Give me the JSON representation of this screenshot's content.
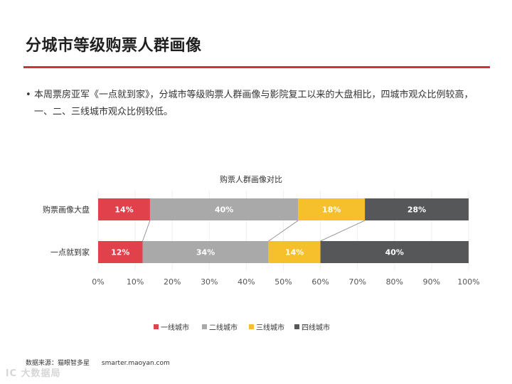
{
  "slide": {
    "title": "分城市等级购票人群画像",
    "bullet": "本周票房亚军《一点就到家》，分城市等级购票人群画像与影院复工以来的大盘相比，四城市观众比例较高，一、二、三线城市观众比例较低。",
    "accent_color": "#c9353a"
  },
  "chart_data": {
    "type": "bar",
    "orientation": "horizontal",
    "stacked": "percent",
    "title": "购票人群画像对比",
    "categories": [
      "购票画像大盘",
      "一点就到家"
    ],
    "series": [
      {
        "name": "一线城市",
        "values": [
          14,
          12
        ],
        "labels": [
          "14%",
          "12%"
        ],
        "color": "#e0414b"
      },
      {
        "name": "二线城市",
        "values": [
          40,
          34
        ],
        "labels": [
          "40%",
          "34%"
        ],
        "color": "#a9a9a9"
      },
      {
        "name": "三线城市",
        "values": [
          18,
          14
        ],
        "labels": [
          "18%",
          "14%"
        ],
        "color": "#f6bf2c"
      },
      {
        "name": "四线城市",
        "values": [
          28,
          40
        ],
        "labels": [
          "28%",
          "40%"
        ],
        "color": "#555759"
      }
    ],
    "xlim": [
      0,
      100
    ],
    "x_ticks": [
      "0%",
      "10%",
      "20%",
      "30%",
      "40%",
      "50%",
      "60%",
      "70%",
      "80%",
      "90%",
      "100%"
    ],
    "series_lines": true,
    "legend": "bottom"
  },
  "footer": {
    "source": "数据来源：猫眼智多星",
    "url": "smarter.maoyan.com",
    "watermark": "lC 大数据局"
  }
}
